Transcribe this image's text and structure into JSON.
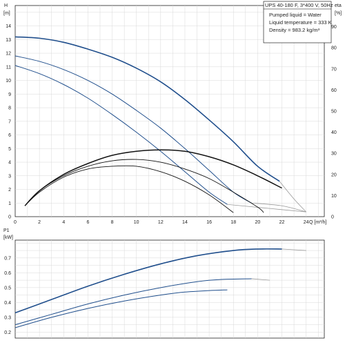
{
  "chart_data": [
    {
      "type": "line",
      "title": "UPS 40-180 F, 3*400 V, 50Hz",
      "info_lines": [
        "Pumped liquid = Water",
        "Liquid temperature = 333 K",
        "Density = 983.2 kg/m³"
      ],
      "ylabel_text": "H",
      "ylabel_unit": "[m]",
      "y2label_text": "eta",
      "y2label_unit": "[%]",
      "xlabel": "Q [m³/h]",
      "xlim": [
        0,
        25.5
      ],
      "ylim": [
        0,
        15.5
      ],
      "y2lim": [
        0,
        100
      ],
      "x_ticks": [
        0,
        2,
        4,
        6,
        8,
        10,
        12,
        14,
        16,
        18,
        20,
        22,
        24
      ],
      "y_ticks": [
        0,
        1,
        2,
        3,
        4,
        5,
        6,
        7,
        8,
        9,
        10,
        11,
        12,
        13,
        14
      ],
      "y2_ticks": [
        0,
        10,
        20,
        30,
        40,
        50,
        60,
        70,
        80,
        90
      ],
      "grid": true,
      "head_color": "#1f4e8c",
      "eff_color": "#111111",
      "extension_color": "#999999",
      "head_series": [
        {
          "x": [
            0,
            2,
            4,
            6,
            8,
            10,
            12,
            14,
            16,
            18,
            20,
            21.8
          ],
          "y": [
            13.2,
            13.1,
            12.8,
            12.3,
            11.7,
            10.9,
            9.9,
            8.6,
            7.1,
            5.5,
            3.7,
            2.6
          ],
          "ext": [
            [
              21.8,
              2.6
            ],
            [
              23,
              1.3
            ],
            [
              24,
              0.35
            ]
          ]
        },
        {
          "x": [
            0,
            2,
            4,
            6,
            8,
            10,
            12,
            14,
            16,
            18,
            19.5
          ],
          "y": [
            11.8,
            11.4,
            10.8,
            10.0,
            9.0,
            7.8,
            6.5,
            5.0,
            3.4,
            1.8,
            1.0
          ],
          "ext": [
            [
              19.5,
              1.0
            ],
            [
              22,
              0.8
            ],
            [
              24,
              0.35
            ]
          ]
        },
        {
          "x": [
            0,
            2,
            4,
            6,
            8,
            10,
            12,
            14,
            16,
            17.5
          ],
          "y": [
            11.1,
            10.5,
            9.7,
            8.7,
            7.5,
            6.2,
            4.8,
            3.3,
            1.8,
            0.9
          ],
          "ext": [
            [
              17.5,
              0.9
            ],
            [
              21,
              0.6
            ],
            [
              24,
              0.35
            ]
          ]
        }
      ],
      "eff_series": [
        {
          "x": [
            0.8,
            2,
            4,
            6,
            8,
            10,
            12,
            14,
            16,
            18,
            20,
            22
          ],
          "y": [
            0.8,
            1.9,
            3.1,
            3.9,
            4.5,
            4.8,
            4.9,
            4.8,
            4.4,
            3.8,
            3.0,
            2.1
          ]
        },
        {
          "x": [
            0.8,
            2,
            4,
            6,
            8,
            10,
            12,
            14,
            16,
            18,
            20,
            20.5
          ],
          "y": [
            0.8,
            1.9,
            3.0,
            3.7,
            4.1,
            4.2,
            4.0,
            3.5,
            2.8,
            1.8,
            0.7,
            0.3
          ]
        },
        {
          "x": [
            0.8,
            2,
            4,
            6,
            8,
            10,
            12,
            14,
            16,
            18
          ],
          "y": [
            0.8,
            1.8,
            2.9,
            3.5,
            3.7,
            3.7,
            3.3,
            2.6,
            1.6,
            0.3
          ]
        }
      ]
    },
    {
      "type": "line",
      "ylabel_text": "P1",
      "ylabel_unit": "[kW]",
      "xlim": [
        0,
        25.5
      ],
      "ylim": [
        0.16,
        0.82
      ],
      "y_ticks": [
        0.2,
        0.3,
        0.4,
        0.5,
        0.6,
        0.7
      ],
      "y_tick_labels": [
        "0.2",
        "0.3",
        "0.4",
        "0.5",
        "0.6",
        "0.7"
      ],
      "grid": true,
      "power_color": "#1f4e8c",
      "power_series": [
        {
          "x": [
            0,
            3,
            6,
            9,
            12,
            15,
            18,
            20,
            22
          ],
          "y": [
            0.33,
            0.42,
            0.51,
            0.59,
            0.66,
            0.715,
            0.75,
            0.76,
            0.76
          ],
          "ext": [
            [
              22,
              0.76
            ],
            [
              24,
              0.75
            ]
          ]
        },
        {
          "x": [
            0,
            3,
            6,
            9,
            12,
            15,
            17,
            19.5
          ],
          "y": [
            0.25,
            0.32,
            0.39,
            0.45,
            0.5,
            0.54,
            0.555,
            0.56
          ],
          "ext": [
            [
              19.5,
              0.56
            ],
            [
              21,
              0.55
            ]
          ]
        },
        {
          "x": [
            0,
            3,
            6,
            9,
            12,
            14,
            16,
            17.5
          ],
          "y": [
            0.23,
            0.3,
            0.36,
            0.41,
            0.45,
            0.47,
            0.48,
            0.485
          ],
          "ext": []
        }
      ]
    }
  ]
}
